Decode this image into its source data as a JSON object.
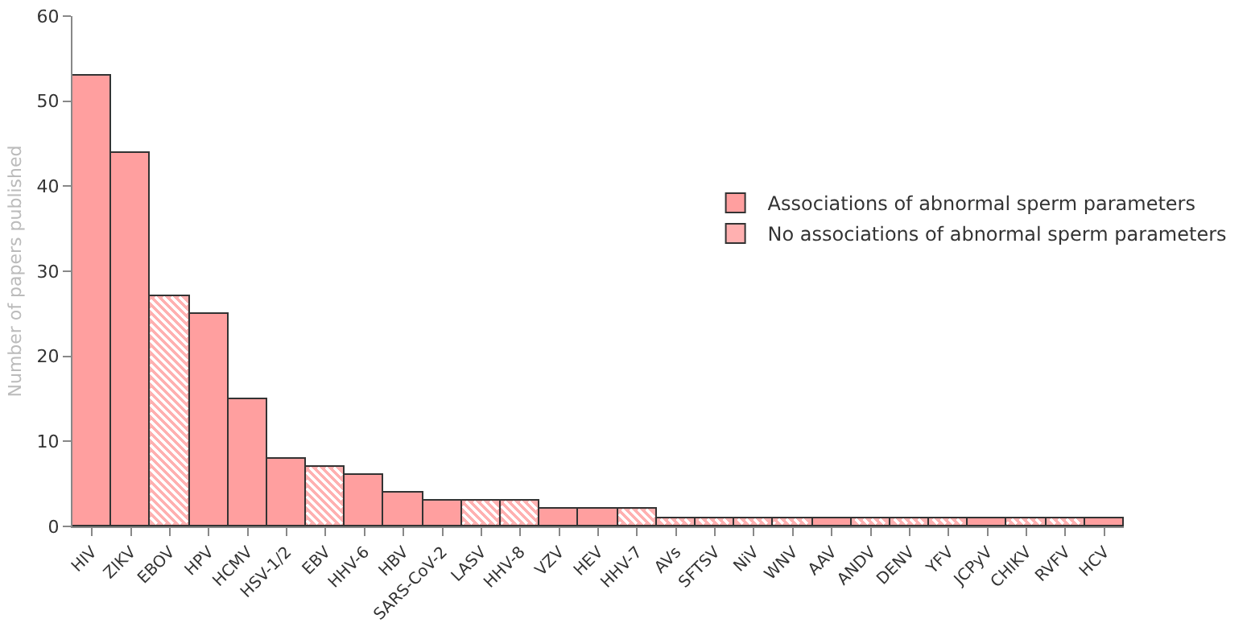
{
  "chart_data": {
    "type": "bar",
    "ylabel": "Number of papers published",
    "categories": [
      "HIV",
      "ZIKV",
      "EBOV",
      "HPV",
      "HCMV",
      "HSV-1/2",
      "EBV",
      "HHV-6",
      "HBV",
      "SARS-CoV-2",
      "LASV",
      "HHV-8",
      "VZV",
      "HEV",
      "HHV-7",
      "AVs",
      "SFTSV",
      "NiV",
      "WNV",
      "AAV",
      "ANDV",
      "DENV",
      "YFV",
      "JCPyV",
      "CHIKV",
      "RVFV",
      "HCV"
    ],
    "series": [
      {
        "name": "Associations of abnormal sperm parameters",
        "color": "#ff9f9f",
        "values": [
          53,
          44,
          null,
          25,
          15,
          8,
          null,
          6,
          4,
          3,
          null,
          null,
          2,
          2,
          null,
          null,
          null,
          null,
          null,
          1,
          null,
          null,
          null,
          1,
          null,
          null,
          1
        ]
      },
      {
        "name": "No associations of abnormal sperm parameters",
        "color": "#ffb0b0",
        "values": [
          null,
          null,
          27,
          null,
          null,
          null,
          7,
          null,
          null,
          null,
          3,
          3,
          null,
          null,
          2,
          1,
          1,
          1,
          1,
          null,
          1,
          1,
          1,
          null,
          1,
          1,
          null
        ]
      }
    ],
    "stacked": true,
    "ylim": [
      0,
      60
    ],
    "yticks": [
      0,
      10,
      20,
      30,
      40,
      50,
      60
    ],
    "grid": false,
    "legend": "right"
  }
}
